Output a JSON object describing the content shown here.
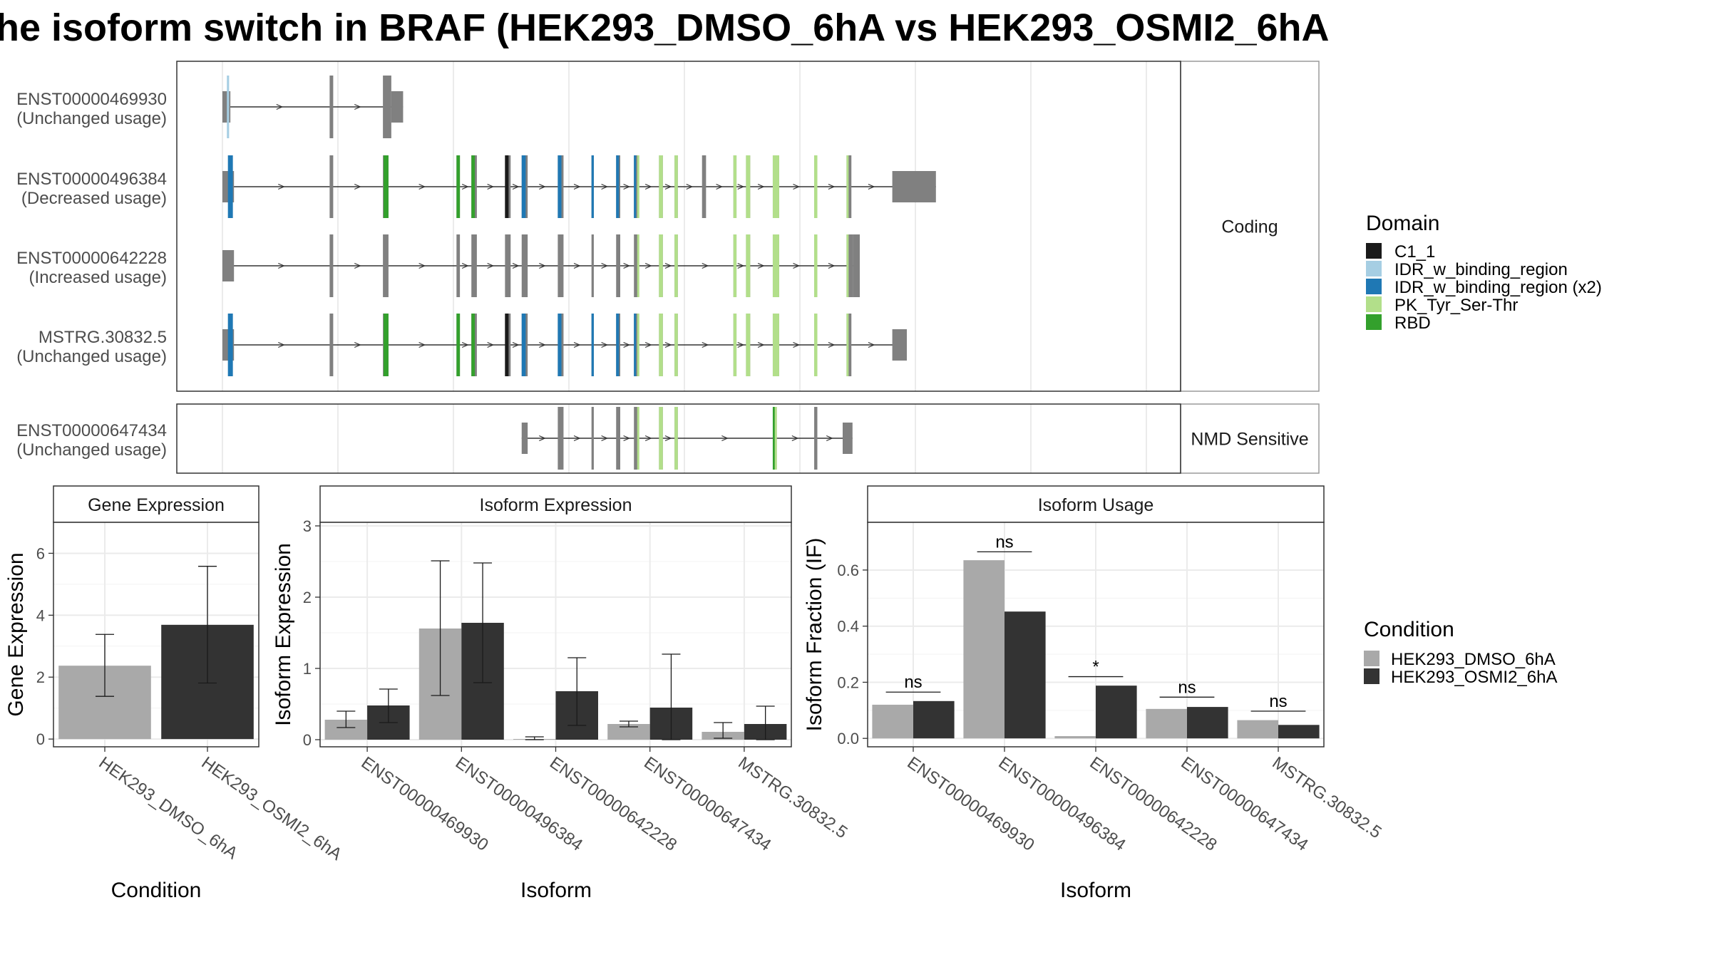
{
  "title": "he isoform switch in BRAF (HEK293_DMSO_6hA vs HEK293_OSMI2_6hA",
  "colors": {
    "C1_1": "#1a1a1a",
    "IDR_w_binding_region": "#a6cee3",
    "IDR_w_binding_region (x2)": "#1f78b4",
    "PK_Tyr_Ser-Thr": "#b2df8a",
    "RBD": "#33a02c",
    "exon": "#808080",
    "dmso": "#a9a9a9",
    "osmi2": "#333333"
  },
  "structure": {
    "facets": [
      "Coding",
      "NMD Sensitive"
    ],
    "transcripts": [
      {
        "name": "ENST00000469930",
        "usage": "(Unchanged usage)",
        "facet": "Coding",
        "exons": [
          [
            0.0,
            9.3
          ],
          [
            125.3,
            129.5
          ],
          [
            187.6,
            197.4
          ],
          [
            197.4,
            211.2
          ]
        ],
        "domains": [
          [
            5.2,
            7.8,
            "IDR_w_binding_region"
          ]
        ]
      },
      {
        "name": "ENST00000496384",
        "usage": "(Decreased usage)",
        "facet": "Coding",
        "exons": [
          [
            0.0,
            13.5
          ],
          [
            125.3,
            129.5
          ],
          [
            187.6,
            194.1
          ],
          [
            273.6,
            277.6
          ],
          [
            291.0,
            297.4
          ],
          [
            330.3,
            336.9
          ],
          [
            349.8,
            356.8
          ],
          [
            392.0,
            398.7
          ],
          [
            431.4,
            434.1
          ],
          [
            460.2,
            465.0
          ],
          [
            481.0,
            486.6
          ],
          [
            510.3,
            514.8
          ],
          [
            528.5,
            532.3
          ],
          [
            560.6,
            565.3
          ],
          [
            597.3,
            600.9
          ],
          [
            612.0,
            616.9
          ],
          [
            643.3,
            650.8
          ],
          [
            691.7,
            695.4
          ],
          [
            729.5,
            735.2
          ],
          [
            783.0,
            834.0
          ]
        ],
        "domains": [
          [
            6.4,
            12.2,
            "IDR_w_binding_region (x2)"
          ],
          [
            188.3,
            194.1,
            "RBD"
          ],
          [
            273.6,
            277.6,
            "RBD"
          ],
          [
            291.0,
            295.0,
            "RBD"
          ],
          [
            330.3,
            334.5,
            "C1_1"
          ],
          [
            349.8,
            354.5,
            "IDR_w_binding_region (x2)"
          ],
          [
            392.0,
            396.3,
            "IDR_w_binding_region (x2)"
          ],
          [
            431.4,
            434.1,
            "IDR_w_binding_region (x2)"
          ],
          [
            460.2,
            463.6,
            "IDR_w_binding_region (x2)"
          ],
          [
            481.0,
            483.5,
            "IDR_w_binding_region (x2)"
          ],
          [
            484.8,
            486.6,
            "PK_Tyr_Ser-Thr"
          ],
          [
            510.3,
            514.8,
            "PK_Tyr_Ser-Thr"
          ],
          [
            528.5,
            532.3,
            "PK_Tyr_Ser-Thr"
          ],
          [
            597.3,
            600.9,
            "PK_Tyr_Ser-Thr"
          ],
          [
            612.0,
            616.9,
            "PK_Tyr_Ser-Thr"
          ],
          [
            643.3,
            650.8,
            "PK_Tyr_Ser-Thr"
          ],
          [
            691.7,
            695.4,
            "PK_Tyr_Ser-Thr"
          ],
          [
            729.5,
            731.5,
            "PK_Tyr_Ser-Thr"
          ]
        ]
      },
      {
        "name": "ENST00000642228",
        "usage": "(Increased usage)",
        "facet": "Coding",
        "exons": [
          [
            0.0,
            13.5
          ],
          [
            125.3,
            129.5
          ],
          [
            187.6,
            194.1
          ],
          [
            273.6,
            277.6
          ],
          [
            291.0,
            297.4
          ],
          [
            330.3,
            336.9
          ],
          [
            349.8,
            356.8
          ],
          [
            392.0,
            398.7
          ],
          [
            431.4,
            434.1
          ],
          [
            460.2,
            465.0
          ],
          [
            481.0,
            486.6
          ],
          [
            510.3,
            514.8
          ],
          [
            528.5,
            532.3
          ],
          [
            597.3,
            600.9
          ],
          [
            612.0,
            616.9
          ],
          [
            643.3,
            650.8
          ],
          [
            691.7,
            695.4
          ],
          [
            729.5,
            737.0
          ],
          [
            737.0,
            745.0
          ]
        ],
        "domains": [
          [
            484.8,
            486.6,
            "PK_Tyr_Ser-Thr"
          ],
          [
            510.3,
            514.8,
            "PK_Tyr_Ser-Thr"
          ],
          [
            528.5,
            532.3,
            "PK_Tyr_Ser-Thr"
          ],
          [
            597.3,
            600.9,
            "PK_Tyr_Ser-Thr"
          ],
          [
            612.0,
            616.9,
            "PK_Tyr_Ser-Thr"
          ],
          [
            643.3,
            650.8,
            "PK_Tyr_Ser-Thr"
          ],
          [
            691.7,
            695.4,
            "PK_Tyr_Ser-Thr"
          ],
          [
            729.5,
            731.5,
            "PK_Tyr_Ser-Thr"
          ]
        ]
      },
      {
        "name": "MSTRG.30832.5",
        "usage": "(Unchanged usage)",
        "facet": "Coding",
        "exons": [
          [
            0.0,
            13.5
          ],
          [
            125.3,
            129.5
          ],
          [
            187.6,
            194.1
          ],
          [
            273.6,
            277.6
          ],
          [
            291.0,
            297.4
          ],
          [
            330.3,
            336.9
          ],
          [
            349.8,
            356.8
          ],
          [
            392.0,
            398.7
          ],
          [
            431.4,
            434.1
          ],
          [
            460.2,
            465.0
          ],
          [
            481.0,
            486.6
          ],
          [
            510.3,
            514.8
          ],
          [
            528.5,
            532.3
          ],
          [
            597.3,
            600.9
          ],
          [
            612.0,
            616.9
          ],
          [
            643.3,
            650.8
          ],
          [
            691.7,
            695.4
          ],
          [
            729.5,
            735.2
          ],
          [
            783.0,
            800.0
          ]
        ],
        "domains": [
          [
            6.4,
            12.2,
            "IDR_w_binding_region (x2)"
          ],
          [
            188.3,
            194.1,
            "RBD"
          ],
          [
            273.6,
            277.6,
            "RBD"
          ],
          [
            291.0,
            295.0,
            "RBD"
          ],
          [
            330.3,
            334.5,
            "C1_1"
          ],
          [
            349.8,
            354.5,
            "IDR_w_binding_region (x2)"
          ],
          [
            392.0,
            396.3,
            "IDR_w_binding_region (x2)"
          ],
          [
            431.4,
            434.1,
            "IDR_w_binding_region (x2)"
          ],
          [
            460.2,
            463.6,
            "IDR_w_binding_region (x2)"
          ],
          [
            481.0,
            483.5,
            "IDR_w_binding_region (x2)"
          ],
          [
            484.8,
            486.6,
            "PK_Tyr_Ser-Thr"
          ],
          [
            510.3,
            514.8,
            "PK_Tyr_Ser-Thr"
          ],
          [
            528.5,
            532.3,
            "PK_Tyr_Ser-Thr"
          ],
          [
            597.3,
            600.9,
            "PK_Tyr_Ser-Thr"
          ],
          [
            612.0,
            616.9,
            "PK_Tyr_Ser-Thr"
          ],
          [
            643.3,
            650.8,
            "PK_Tyr_Ser-Thr"
          ],
          [
            691.7,
            695.4,
            "PK_Tyr_Ser-Thr"
          ],
          [
            729.5,
            731.5,
            "PK_Tyr_Ser-Thr"
          ]
        ]
      },
      {
        "name": "ENST00000647434",
        "usage": "(Unchanged usage)",
        "facet": "NMD Sensitive",
        "exons": [
          [
            349.8,
            356.8
          ],
          [
            392.0,
            398.7
          ],
          [
            431.4,
            434.1
          ],
          [
            460.2,
            465.0
          ],
          [
            481.0,
            486.6
          ],
          [
            510.3,
            514.8
          ],
          [
            528.5,
            532.3
          ],
          [
            643.3,
            648.0
          ],
          [
            691.7,
            695.4
          ],
          [
            725.0,
            736.5
          ]
        ],
        "domains": [
          [
            484.8,
            486.6,
            "PK_Tyr_Ser-Thr"
          ],
          [
            510.3,
            514.8,
            "PK_Tyr_Ser-Thr"
          ],
          [
            528.5,
            532.3,
            "PK_Tyr_Ser-Thr"
          ],
          [
            643.3,
            644.6,
            "RBD"
          ],
          [
            645.6,
            648.0,
            "PK_Tyr_Ser-Thr"
          ]
        ]
      }
    ]
  },
  "domain_legend": {
    "title": "Domain",
    "items": [
      "C1_1",
      "IDR_w_binding_region",
      "IDR_w_binding_region (x2)",
      "PK_Tyr_Ser-Thr",
      "RBD"
    ]
  },
  "condition_legend": {
    "title": "Condition",
    "items": [
      "HEK293_DMSO_6hA",
      "HEK293_OSMI2_6hA"
    ]
  },
  "chart_data": [
    {
      "type": "bar",
      "title": "Gene Expression",
      "xlabel": "Condition",
      "ylabel": "Gene Expression",
      "ylim": [
        -0.25,
        7.0
      ],
      "yticks": [
        0,
        2,
        4,
        6
      ],
      "categories": [
        "HEK293_DMSO_6hA",
        "HEK293_OSMI2_6hA"
      ],
      "series": [
        {
          "name": "HEK293_DMSO_6hA",
          "values": [
            2.37,
            null
          ],
          "err_low": [
            1.38,
            null
          ],
          "err_high": [
            3.38,
            null
          ]
        },
        {
          "name": "HEK293_OSMI2_6hA",
          "values": [
            null,
            3.69
          ],
          "err_low": [
            null,
            1.81
          ],
          "err_high": [
            null,
            5.58
          ]
        }
      ]
    },
    {
      "type": "bar",
      "title": "Isoform Expression",
      "xlabel": "Isoform",
      "ylabel": "Isoform Expression",
      "ylim": [
        -0.1,
        3.05
      ],
      "yticks": [
        0,
        1,
        2,
        3
      ],
      "categories": [
        "ENST00000469930",
        "ENST00000496384",
        "ENST00000642228",
        "ENST00000647434",
        "MSTRG.30832.5"
      ],
      "series": [
        {
          "name": "HEK293_DMSO_6hA",
          "values": [
            0.28,
            1.56,
            0.01,
            0.22,
            0.11
          ],
          "err_low": [
            0.17,
            0.62,
            0.0,
            0.18,
            0.02
          ],
          "err_high": [
            0.4,
            2.51,
            0.04,
            0.26,
            0.24
          ]
        },
        {
          "name": "HEK293_OSMI2_6hA",
          "values": [
            0.48,
            1.64,
            0.68,
            0.45,
            0.22
          ],
          "err_low": [
            0.24,
            0.8,
            0.2,
            0.0,
            0.0
          ],
          "err_high": [
            0.71,
            2.48,
            1.15,
            1.2,
            0.47
          ]
        }
      ]
    },
    {
      "type": "bar",
      "title": "Isoform Usage",
      "xlabel": "Isoform",
      "ylabel": "Isoform Fraction (IF)",
      "ylim": [
        -0.03,
        0.77
      ],
      "yticks": [
        0.0,
        0.2,
        0.4,
        0.6
      ],
      "categories": [
        "ENST00000469930",
        "ENST00000496384",
        "ENST00000642228",
        "ENST00000647434",
        "MSTRG.30832.5"
      ],
      "series": [
        {
          "name": "HEK293_DMSO_6hA",
          "values": [
            0.12,
            0.635,
            0.008,
            0.105,
            0.065
          ]
        },
        {
          "name": "HEK293_OSMI2_6hA",
          "values": [
            0.133,
            0.452,
            0.188,
            0.112,
            0.048
          ]
        }
      ],
      "significance": [
        {
          "label": "ns",
          "y": 0.165
        },
        {
          "label": "ns",
          "y": 0.665
        },
        {
          "label": "*",
          "y": 0.22
        },
        {
          "label": "ns",
          "y": 0.147
        },
        {
          "label": "ns",
          "y": 0.097
        }
      ]
    }
  ]
}
